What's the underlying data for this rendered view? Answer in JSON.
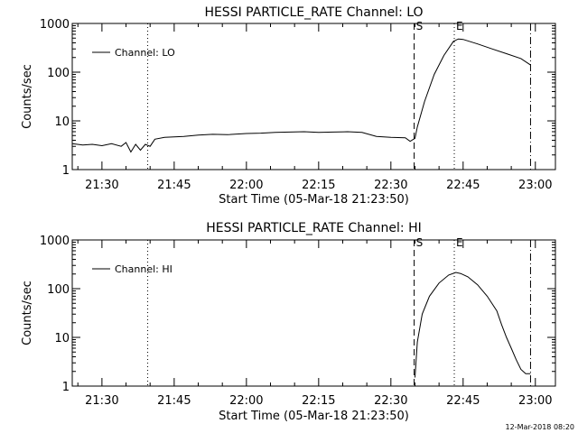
{
  "footer_timestamp": "12-Mar-2018 08:20",
  "chart_data": [
    {
      "type": "line",
      "title": "HESSI PARTICLE_RATE Channel: LO",
      "xlabel": "Start Time (05-Mar-18 21:23:50)",
      "ylabel": "Counts/sec",
      "y_scale": "log",
      "ylim": [
        1,
        1000
      ],
      "xlim": [
        "21:23:50",
        "23:04:10"
      ],
      "x_ticks": [
        "21:30",
        "21:45",
        "22:00",
        "22:15",
        "22:30",
        "22:45",
        "23:00"
      ],
      "y_ticks": [
        "1",
        "10",
        "100",
        "1000"
      ],
      "legend_position": "top-left",
      "series": [
        {
          "name": "Channel: LO",
          "x": [
            "21:23:50",
            "21:26:00",
            "21:28:00",
            "21:30:00",
            "21:32:00",
            "21:34:00",
            "21:35:00",
            "21:36:00",
            "21:37:00",
            "21:38:00",
            "21:39:00",
            "21:40:00",
            "21:41:00",
            "21:43:00",
            "21:47:00",
            "21:50:00",
            "21:53:00",
            "21:56:00",
            "22:00:00",
            "22:03:00",
            "22:06:00",
            "22:09:00",
            "22:12:00",
            "22:15:00",
            "22:18:00",
            "22:21:00",
            "22:24:00",
            "22:27:00",
            "22:30:00",
            "22:33:00",
            "22:34:00",
            "22:35:00",
            "22:35:30",
            "22:37:00",
            "22:39:00",
            "22:41:00",
            "22:43:00",
            "22:44:00",
            "22:45:00",
            "22:48:00",
            "22:51:00",
            "22:54:00",
            "22:57:00",
            "22:59:00"
          ],
          "values": [
            3.4,
            3.2,
            3.3,
            3.1,
            3.4,
            3.0,
            3.6,
            2.3,
            3.3,
            2.5,
            3.3,
            3.0,
            4.2,
            4.6,
            4.8,
            5.1,
            5.3,
            5.2,
            5.5,
            5.6,
            5.8,
            5.9,
            6.0,
            5.8,
            5.9,
            6.0,
            5.8,
            4.8,
            4.6,
            4.5,
            3.8,
            4.4,
            7.5,
            25,
            90,
            220,
            430,
            480,
            470,
            380,
            300,
            240,
            190,
            140
          ]
        }
      ],
      "markers": [
        {
          "label": "",
          "time": "21:39:30",
          "style": "dotted"
        },
        {
          "label": "S",
          "time": "22:34:50",
          "style": "dashed"
        },
        {
          "label": "E",
          "time": "22:43:10",
          "style": "dotted"
        },
        {
          "label": "",
          "time": "22:59:00",
          "style": "dash-dot"
        }
      ]
    },
    {
      "type": "line",
      "title": "HESSI PARTICLE_RATE Channel: HI",
      "xlabel": "Start Time (05-Mar-18 21:23:50)",
      "ylabel": "Counts/sec",
      "y_scale": "log",
      "ylim": [
        1,
        1000
      ],
      "xlim": [
        "21:23:50",
        "23:04:10"
      ],
      "x_ticks": [
        "21:30",
        "21:45",
        "22:00",
        "22:15",
        "22:30",
        "22:45",
        "23:00"
      ],
      "y_ticks": [
        "1",
        "10",
        "100",
        "1000"
      ],
      "legend_position": "top-left",
      "series": [
        {
          "name": "Channel: HI",
          "x": [
            "22:35:00",
            "22:35:30",
            "22:36:30",
            "22:38:00",
            "22:40:00",
            "22:42:00",
            "22:43:30",
            "22:44:30",
            "22:46:00",
            "22:48:00",
            "22:50:00",
            "22:52:00",
            "22:53:00",
            "22:54:00",
            "22:55:00",
            "22:56:00",
            "22:57:00",
            "22:58:00",
            "22:59:00"
          ],
          "values": [
            1.5,
            8,
            30,
            70,
            130,
            190,
            215,
            205,
            175,
            120,
            70,
            35,
            18,
            10,
            6,
            3.5,
            2.2,
            1.8,
            1.8
          ]
        }
      ],
      "markers": [
        {
          "label": "",
          "time": "21:39:30",
          "style": "dotted"
        },
        {
          "label": "S",
          "time": "22:34:50",
          "style": "dashed"
        },
        {
          "label": "E",
          "time": "22:43:10",
          "style": "dotted"
        },
        {
          "label": "",
          "time": "22:59:00",
          "style": "dash-dot"
        }
      ]
    }
  ]
}
